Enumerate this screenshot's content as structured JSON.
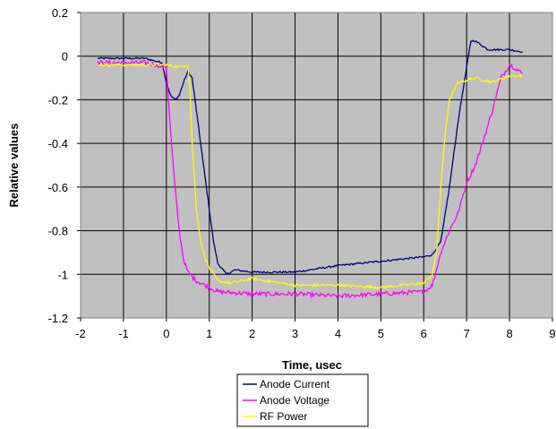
{
  "chart_data": {
    "type": "line",
    "title": "",
    "xlabel": "Time, usec",
    "ylabel": "Relative values",
    "xlim": [
      -2,
      9
    ],
    "ylim": [
      -1.2,
      0.2
    ],
    "x_ticks": [
      -2,
      -1,
      0,
      1,
      2,
      3,
      4,
      5,
      6,
      7,
      8,
      9
    ],
    "y_ticks": [
      0.2,
      0,
      -0.2,
      -0.4,
      -0.6,
      -0.8,
      -1,
      -1.2
    ],
    "x_tick_labels": [
      "-2",
      "-1",
      "0",
      "1",
      "2",
      "3",
      "4",
      "5",
      "6",
      "7",
      "8",
      "9"
    ],
    "y_tick_labels": [
      "0.2",
      "0",
      "-0.2",
      "-0.4",
      "-0.6",
      "-0.8",
      "-1",
      "-1.2"
    ],
    "grid": true,
    "plot_background": "#c0c0c0",
    "legend_position": "bottom",
    "series": [
      {
        "name": "Anode Current",
        "color": "#000080",
        "points": [
          [
            -1.6,
            -0.01
          ],
          [
            -0.5,
            -0.01
          ],
          [
            -0.1,
            -0.03
          ],
          [
            0.0,
            -0.12
          ],
          [
            0.1,
            -0.18
          ],
          [
            0.2,
            -0.2
          ],
          [
            0.3,
            -0.18
          ],
          [
            0.4,
            -0.12
          ],
          [
            0.5,
            -0.07
          ],
          [
            0.6,
            -0.1
          ],
          [
            0.7,
            -0.25
          ],
          [
            0.8,
            -0.4
          ],
          [
            0.9,
            -0.55
          ],
          [
            1.0,
            -0.7
          ],
          [
            1.1,
            -0.85
          ],
          [
            1.2,
            -0.95
          ],
          [
            1.4,
            -1.0
          ],
          [
            1.6,
            -0.98
          ],
          [
            2.0,
            -0.99
          ],
          [
            3.0,
            -0.99
          ],
          [
            4.0,
            -0.96
          ],
          [
            5.0,
            -0.94
          ],
          [
            6.0,
            -0.92
          ],
          [
            6.2,
            -0.91
          ],
          [
            6.4,
            -0.85
          ],
          [
            6.6,
            -0.6
          ],
          [
            6.8,
            -0.3
          ],
          [
            7.0,
            -0.05
          ],
          [
            7.1,
            0.07
          ],
          [
            7.2,
            0.07
          ],
          [
            7.5,
            0.03
          ],
          [
            8.0,
            0.03
          ],
          [
            8.3,
            0.02
          ]
        ]
      },
      {
        "name": "Anode Voltage",
        "color": "#ff00ff",
        "points": [
          [
            -1.6,
            -0.03
          ],
          [
            -0.5,
            -0.03
          ],
          [
            0.0,
            -0.05
          ],
          [
            0.05,
            -0.2
          ],
          [
            0.1,
            -0.35
          ],
          [
            0.2,
            -0.6
          ],
          [
            0.3,
            -0.8
          ],
          [
            0.4,
            -0.93
          ],
          [
            0.5,
            -0.99
          ],
          [
            0.7,
            -1.03
          ],
          [
            1.0,
            -1.06
          ],
          [
            1.2,
            -1.08
          ],
          [
            2.0,
            -1.09
          ],
          [
            3.0,
            -1.09
          ],
          [
            4.0,
            -1.1
          ],
          [
            5.0,
            -1.09
          ],
          [
            6.0,
            -1.08
          ],
          [
            6.2,
            -1.05
          ],
          [
            6.4,
            -0.9
          ],
          [
            6.6,
            -0.8
          ],
          [
            6.8,
            -0.72
          ],
          [
            7.0,
            -0.58
          ],
          [
            7.2,
            -0.5
          ],
          [
            7.4,
            -0.38
          ],
          [
            7.6,
            -0.25
          ],
          [
            7.8,
            -0.1
          ],
          [
            8.0,
            -0.04
          ],
          [
            8.1,
            -0.05
          ],
          [
            8.3,
            -0.08
          ]
        ]
      },
      {
        "name": "RF Power",
        "color": "#ffff00",
        "points": [
          [
            -1.6,
            -0.04
          ],
          [
            0.0,
            -0.04
          ],
          [
            0.3,
            -0.05
          ],
          [
            0.45,
            -0.04
          ],
          [
            0.5,
            -0.04
          ],
          [
            0.55,
            -0.15
          ],
          [
            0.6,
            -0.4
          ],
          [
            0.7,
            -0.7
          ],
          [
            0.8,
            -0.85
          ],
          [
            0.9,
            -0.92
          ],
          [
            1.0,
            -0.97
          ],
          [
            1.2,
            -1.03
          ],
          [
            1.5,
            -1.04
          ],
          [
            2.0,
            -1.02
          ],
          [
            3.0,
            -1.05
          ],
          [
            4.0,
            -1.05
          ],
          [
            5.0,
            -1.06
          ],
          [
            6.0,
            -1.04
          ],
          [
            6.2,
            -1.0
          ],
          [
            6.3,
            -0.9
          ],
          [
            6.4,
            -0.6
          ],
          [
            6.5,
            -0.35
          ],
          [
            6.6,
            -0.2
          ],
          [
            6.8,
            -0.12
          ],
          [
            7.2,
            -0.1
          ],
          [
            7.6,
            -0.12
          ],
          [
            8.0,
            -0.09
          ],
          [
            8.3,
            -0.09
          ]
        ]
      }
    ]
  }
}
